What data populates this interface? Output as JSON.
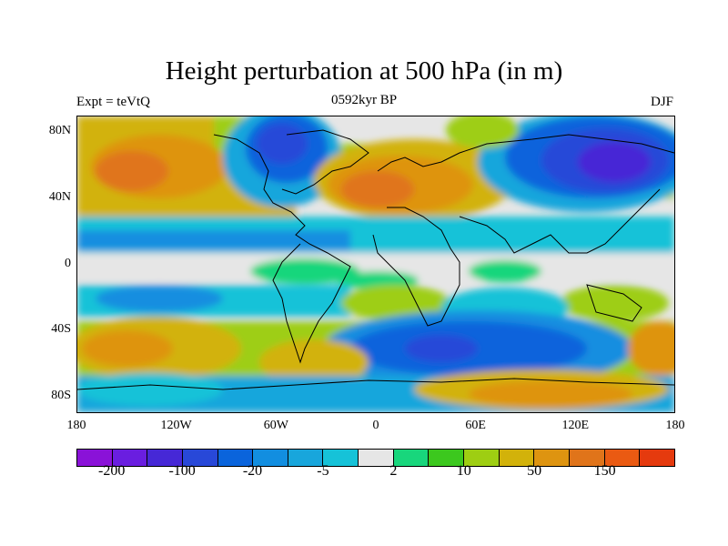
{
  "header": {
    "title": "Height perturbation at 500 hPa (in m)",
    "experiment": "Expt = teVtQ",
    "period": "0592kyr BP",
    "season": "DJF"
  },
  "map": {
    "projection": "cylindrical-equidistant",
    "lon_range": [
      -180,
      180
    ],
    "lat_range": [
      -90,
      90
    ],
    "y_ticks": [
      {
        "lat": 80,
        "label": "80N"
      },
      {
        "lat": 40,
        "label": "40N"
      },
      {
        "lat": 0,
        "label": "0"
      },
      {
        "lat": -40,
        "label": "40S"
      },
      {
        "lat": -80,
        "label": "80S"
      }
    ],
    "x_ticks": [
      {
        "lon": -180,
        "label": "180"
      },
      {
        "lon": -120,
        "label": "120W"
      },
      {
        "lon": -60,
        "label": "60W"
      },
      {
        "lon": 0,
        "label": "0"
      },
      {
        "lon": 60,
        "label": "60E"
      },
      {
        "lon": 120,
        "label": "120E"
      },
      {
        "lon": 180,
        "label": "180"
      }
    ],
    "coastline_color": "#000000"
  },
  "colorbar": {
    "colors": [
      "#8a12d8",
      "#6a1ee0",
      "#4628d6",
      "#2848d8",
      "#0a64dc",
      "#128ee0",
      "#18a6dc",
      "#16c2d8",
      "#e6e6e6",
      "#18d67c",
      "#3cc81e",
      "#9ece12",
      "#d2b20a",
      "#de9410",
      "#e0741a",
      "#ea5a12",
      "#e53a0e"
    ],
    "labels": [
      {
        "text": "-200",
        "boundary": 1
      },
      {
        "text": "-100",
        "boundary": 3
      },
      {
        "text": "-20",
        "boundary": 5
      },
      {
        "text": "-5",
        "boundary": 7
      },
      {
        "text": "2",
        "boundary": 9
      },
      {
        "text": "10",
        "boundary": 11
      },
      {
        "text": "50",
        "boundary": 13
      },
      {
        "text": "150",
        "boundary": 15
      }
    ]
  }
}
